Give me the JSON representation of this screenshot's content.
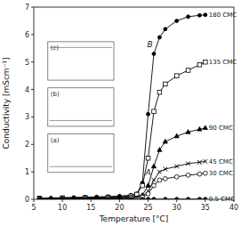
{
  "chart_data": {
    "type": "line",
    "xlabel": "Temperature [°C]",
    "ylabel": "Conductivity [mScm⁻¹]",
    "xlim": [
      5,
      40
    ],
    "ylim": [
      0,
      7
    ],
    "xticks": [
      5,
      10,
      15,
      20,
      25,
      30,
      35,
      40
    ],
    "yticks": [
      0,
      1,
      2,
      3,
      4,
      5,
      6,
      7
    ],
    "series": [
      {
        "name": "180 CMC",
        "color": "black",
        "marker": "circle",
        "x": [
          6,
          8,
          10,
          12,
          14,
          16,
          18,
          20,
          22,
          23,
          24,
          25,
          26,
          27,
          28,
          30,
          32,
          34,
          35
        ],
        "values": [
          0.05,
          0.05,
          0.06,
          0.07,
          0.08,
          0.09,
          0.1,
          0.12,
          0.15,
          0.2,
          0.6,
          3.1,
          5.3,
          5.9,
          6.2,
          6.5,
          6.65,
          6.7,
          6.72
        ]
      },
      {
        "name": "135 CMC",
        "color": "black",
        "marker": "square-open",
        "x": [
          6,
          10,
          14,
          18,
          22,
          23,
          24,
          25,
          26,
          27,
          28,
          30,
          32,
          34,
          35
        ],
        "values": [
          0.04,
          0.05,
          0.06,
          0.08,
          0.12,
          0.18,
          0.5,
          1.5,
          3.2,
          3.9,
          4.2,
          4.5,
          4.7,
          4.9,
          5.0
        ]
      },
      {
        "name": "90 CMC",
        "color": "black",
        "marker": "triangle",
        "x": [
          6,
          10,
          14,
          18,
          22,
          24,
          25,
          26,
          27,
          28,
          30,
          32,
          34,
          35
        ],
        "values": [
          0.03,
          0.04,
          0.05,
          0.06,
          0.08,
          0.15,
          0.5,
          1.2,
          1.8,
          2.1,
          2.3,
          2.45,
          2.55,
          2.6
        ]
      },
      {
        "name": "45 CMC",
        "color": "black",
        "marker": "x",
        "x": [
          6,
          10,
          14,
          18,
          22,
          24,
          25,
          26,
          27,
          28,
          30,
          32,
          34,
          35
        ],
        "values": [
          0.02,
          0.03,
          0.04,
          0.05,
          0.06,
          0.1,
          0.3,
          0.7,
          1.0,
          1.1,
          1.2,
          1.3,
          1.35,
          1.38
        ]
      },
      {
        "name": "30 CMC",
        "color": "black",
        "marker": "circle-open",
        "x": [
          6,
          10,
          14,
          18,
          22,
          24,
          25,
          26,
          27,
          28,
          30,
          32,
          34,
          35
        ],
        "values": [
          0.02,
          0.02,
          0.03,
          0.04,
          0.05,
          0.08,
          0.2,
          0.5,
          0.7,
          0.75,
          0.82,
          0.88,
          0.92,
          0.95
        ]
      },
      {
        "name": "0.5 CMC",
        "color": "black",
        "marker": "circle",
        "x": [
          6,
          8,
          10,
          12,
          14,
          16,
          18,
          20,
          22,
          24,
          25,
          26,
          28,
          30,
          32,
          34,
          35
        ],
        "values": [
          0.01,
          0.01,
          0.01,
          0.01,
          0.01,
          0.01,
          0.01,
          0.01,
          0.01,
          0.01,
          0.01,
          0.01,
          0.01,
          0.01,
          0.01,
          0.01,
          0.01
        ]
      }
    ],
    "annotations": [
      {
        "text": "A",
        "x": 25.0,
        "y": 0.85
      },
      {
        "text": "B",
        "x": 25.3,
        "y": 5.5
      },
      {
        "text": "(a)"
      },
      {
        "text": "(b)"
      },
      {
        "text": "(c)"
      }
    ]
  }
}
